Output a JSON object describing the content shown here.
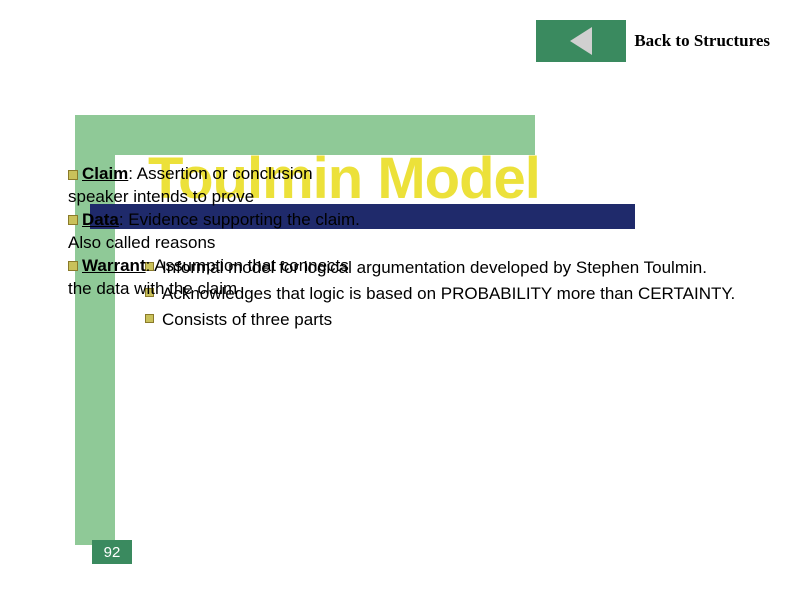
{
  "nav": {
    "back_label": "Back to Structures"
  },
  "title": "Toulmin Model",
  "definitions": {
    "claim_term": "Claim",
    "claim_text": ": Assertion or conclusion",
    "claim_line2": "speaker intends to prove",
    "data_term": "Data",
    "data_text": ": Evidence supporting the claim.",
    "data_line2": "Also called reasons",
    "warrant_term": "Warrant",
    "warrant_text": ": Assumption that connects",
    "warrant_line2": "the data with the claim"
  },
  "explain": {
    "p1": "Informal model for logical argumentation developed by Stephen Toulmin.",
    "p2": "Acknowledges that logic is based on PROBABILITY more than CERTAINTY.",
    "p3": "Consists of three parts"
  },
  "slide_number": "92",
  "colors": {
    "frame_green": "#8fc997",
    "btn_green": "#3a8a5f",
    "title_yellow": "#ece13a",
    "bar_navy": "#1f2a6b",
    "bullet_fill": "#c9c15a",
    "bullet_border": "#8a7a2a"
  }
}
